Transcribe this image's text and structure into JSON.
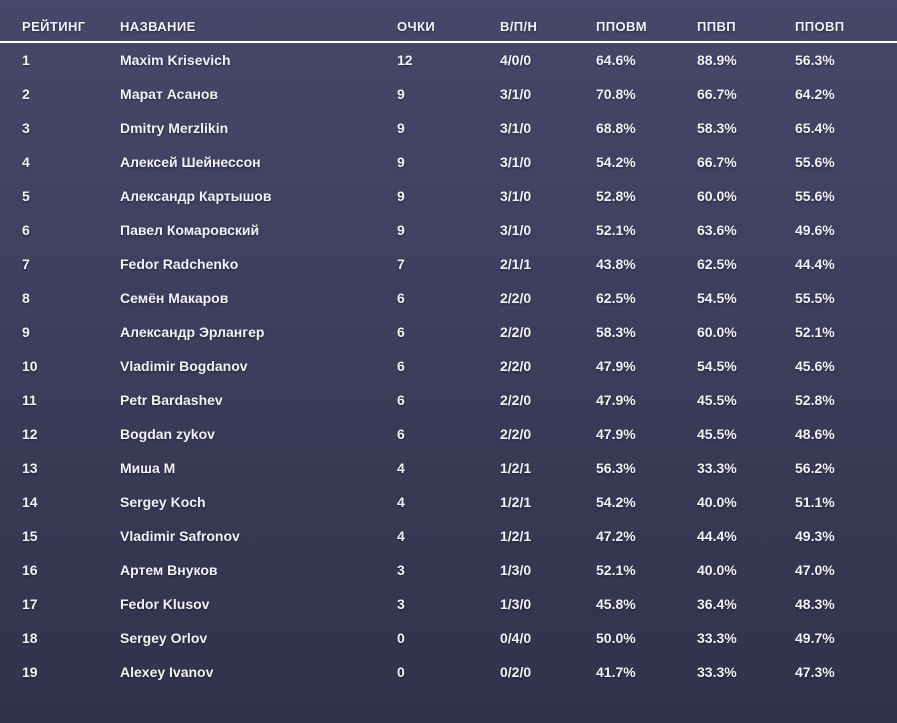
{
  "colors": {
    "background_top": "#47476a",
    "background_mid": "#3e3e5e",
    "background_bottom": "#32324b",
    "text_color": "#f2f2f7",
    "divider_color": "#ffffff"
  },
  "table": {
    "columns": [
      {
        "key": "rating",
        "label": "РЕЙТИНГ"
      },
      {
        "key": "name",
        "label": "НАЗВАНИЕ"
      },
      {
        "key": "points",
        "label": "ОЧКИ"
      },
      {
        "key": "wld",
        "label": "В/П/Н"
      },
      {
        "key": "ppovm",
        "label": "ППОВМ"
      },
      {
        "key": "ppvp",
        "label": "ППВП"
      },
      {
        "key": "ppovp",
        "label": "ППОВП"
      }
    ],
    "rows": [
      {
        "rating": "1",
        "name": "Maxim Krisevich",
        "points": "12",
        "wld": "4/0/0",
        "ppovm": "64.6%",
        "ppvp": "88.9%",
        "ppovp": "56.3%"
      },
      {
        "rating": "2",
        "name": "Марат Асанов",
        "points": "9",
        "wld": "3/1/0",
        "ppovm": "70.8%",
        "ppvp": "66.7%",
        "ppovp": "64.2%"
      },
      {
        "rating": "3",
        "name": "Dmitry Merzlikin",
        "points": "9",
        "wld": "3/1/0",
        "ppovm": "68.8%",
        "ppvp": "58.3%",
        "ppovp": "65.4%"
      },
      {
        "rating": "4",
        "name": "Алексей Шейнессон",
        "points": "9",
        "wld": "3/1/0",
        "ppovm": "54.2%",
        "ppvp": "66.7%",
        "ppovp": "55.6%"
      },
      {
        "rating": "5",
        "name": "Александр Картышов",
        "points": "9",
        "wld": "3/1/0",
        "ppovm": "52.8%",
        "ppvp": "60.0%",
        "ppovp": "55.6%"
      },
      {
        "rating": "6",
        "name": "Павел Комаровский",
        "points": "9",
        "wld": "3/1/0",
        "ppovm": "52.1%",
        "ppvp": "63.6%",
        "ppovp": "49.6%"
      },
      {
        "rating": "7",
        "name": "Fedor Radchenko",
        "points": "7",
        "wld": "2/1/1",
        "ppovm": "43.8%",
        "ppvp": "62.5%",
        "ppovp": "44.4%"
      },
      {
        "rating": "8",
        "name": "Семён Макаров",
        "points": "6",
        "wld": "2/2/0",
        "ppovm": "62.5%",
        "ppvp": "54.5%",
        "ppovp": "55.5%"
      },
      {
        "rating": "9",
        "name": "Александр Эрлангер",
        "points": "6",
        "wld": "2/2/0",
        "ppovm": "58.3%",
        "ppvp": "60.0%",
        "ppovp": "52.1%"
      },
      {
        "rating": "10",
        "name": "Vladimir Bogdanov",
        "points": "6",
        "wld": "2/2/0",
        "ppovm": "47.9%",
        "ppvp": "54.5%",
        "ppovp": "45.6%"
      },
      {
        "rating": "11",
        "name": "Petr Bardashev",
        "points": "6",
        "wld": "2/2/0",
        "ppovm": "47.9%",
        "ppvp": "45.5%",
        "ppovp": "52.8%"
      },
      {
        "rating": "12",
        "name": "Bogdan zykov",
        "points": "6",
        "wld": "2/2/0",
        "ppovm": "47.9%",
        "ppvp": "45.5%",
        "ppovp": "48.6%"
      },
      {
        "rating": "13",
        "name": "Миша М",
        "points": "4",
        "wld": "1/2/1",
        "ppovm": "56.3%",
        "ppvp": "33.3%",
        "ppovp": "56.2%"
      },
      {
        "rating": "14",
        "name": "Sergey Koch",
        "points": "4",
        "wld": "1/2/1",
        "ppovm": "54.2%",
        "ppvp": "40.0%",
        "ppovp": "51.1%"
      },
      {
        "rating": "15",
        "name": "Vladimir Safronov",
        "points": "4",
        "wld": "1/2/1",
        "ppovm": "47.2%",
        "ppvp": "44.4%",
        "ppovp": "49.3%"
      },
      {
        "rating": "16",
        "name": "Артем Внуков",
        "points": "3",
        "wld": "1/3/0",
        "ppovm": "52.1%",
        "ppvp": "40.0%",
        "ppovp": "47.0%"
      },
      {
        "rating": "17",
        "name": "Fedor Klusov",
        "points": "3",
        "wld": "1/3/0",
        "ppovm": "45.8%",
        "ppvp": "36.4%",
        "ppovp": "48.3%"
      },
      {
        "rating": "18",
        "name": "Sergey Orlov",
        "points": "0",
        "wld": "0/4/0",
        "ppovm": "50.0%",
        "ppvp": "33.3%",
        "ppovp": "49.7%"
      },
      {
        "rating": "19",
        "name": "Alexey Ivanov",
        "points": "0",
        "wld": "0/2/0",
        "ppovm": "41.7%",
        "ppvp": "33.3%",
        "ppovp": "47.3%"
      }
    ]
  }
}
